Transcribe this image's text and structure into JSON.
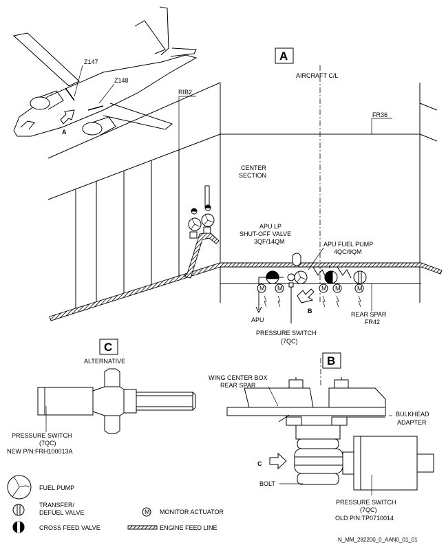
{
  "views": {
    "a": "A",
    "b": "B",
    "c": "C"
  },
  "aircraft": {
    "zone1": "Z147",
    "zone2": "Z148",
    "arrow": "A"
  },
  "view_a": {
    "rib": "RIB2",
    "centerline": "AIRCRAFT C/L",
    "frame36": "FR36",
    "center_1": "CENTER",
    "center_2": "SECTION",
    "valve_1": "APU LP",
    "valve_2": "SHUT-OFF VALVE",
    "valve_3": "3QF/14QM",
    "pump_1": "APU FUEL PUMP",
    "pump_2": "4QC/9QM",
    "apu": "APU",
    "arrow_b": "B",
    "pswitch_1": "PRESSURE SWITCH",
    "pswitch_2": "(7QC)",
    "spar_1": "REAR SPAR",
    "spar_2": "FR42",
    "m": "M"
  },
  "view_c": {
    "title": "ALTERNATIVE",
    "label_1": "PRESSURE SWITCH",
    "label_2": "(7QC)",
    "label_3": "NEW P/N:FRH100013A"
  },
  "view_b": {
    "box_1": "WING CENTER BOX",
    "box_2": "REAR SPAR",
    "adapter_1": "BULKHEAD",
    "adapter_2": "ADAPTER",
    "arrow_c": "C",
    "bolt": "BOLT",
    "label_1": "PRESSURE SWITCH",
    "label_2": "(7QC)",
    "label_3": "OLD P/N:TP0710014"
  },
  "legend": {
    "fuel_pump": "FUEL PUMP",
    "transfer_1": "TRANSFER/",
    "transfer_2": "DEFUEL VALVE",
    "crossfeed": "CROSS FEED VALVE",
    "monitor": "MONITOR ACTUATOR",
    "monitor_symbol": "M",
    "feed_line": "ENGINE FEED LINE"
  },
  "doc_ref": "N_MM_282200_0_AAN0_01_01"
}
